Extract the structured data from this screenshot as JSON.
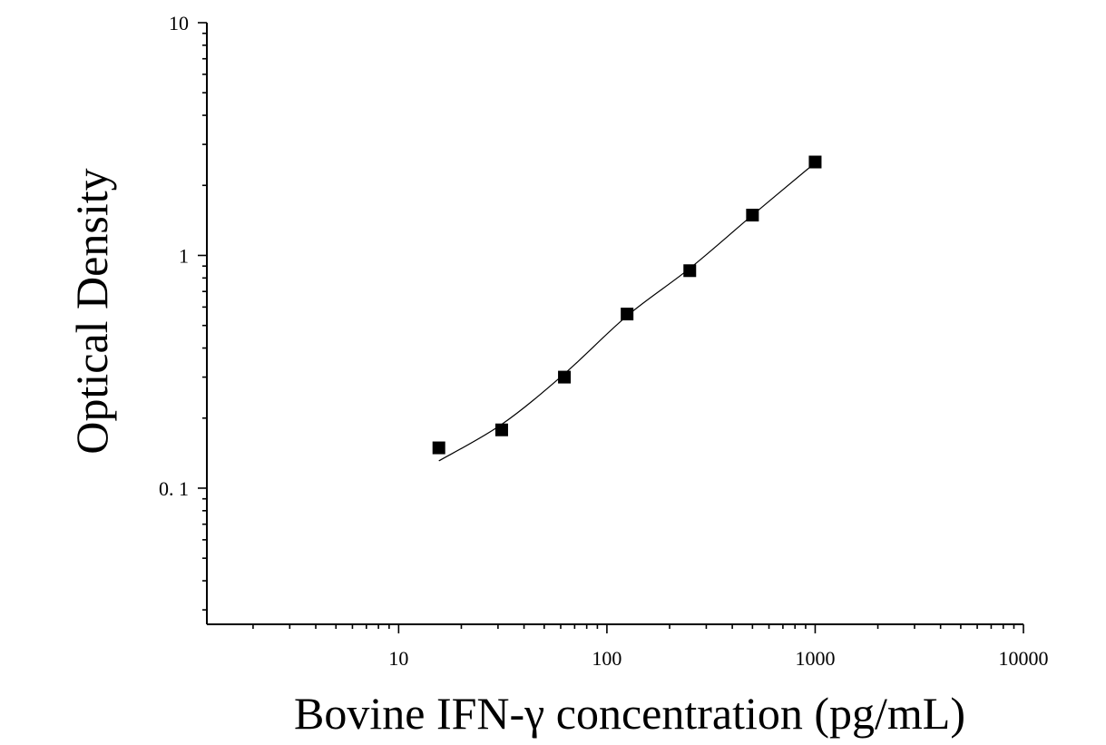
{
  "chart_data": {
    "type": "scatter",
    "title": "",
    "xlabel": "Bovine IFN-γ concentration (pg/mL)",
    "ylabel": "Optical Density",
    "x_scale": "log",
    "y_scale": "log",
    "xlim": [
      1.2,
      10000
    ],
    "ylim": [
      0.026,
      10
    ],
    "x_ticks": [
      10,
      100,
      1000,
      10000
    ],
    "x_tick_labels": [
      "10",
      "100",
      "1000",
      "10000"
    ],
    "y_ticks": [
      0.1,
      1,
      10
    ],
    "y_tick_labels": [
      "0. 1",
      "1",
      "10"
    ],
    "grid": false,
    "legend": "none",
    "marker": "square",
    "marker_color": "#000000",
    "line_color": "#000000",
    "series": [
      {
        "x": [
          15.6,
          31.25,
          62.5,
          125,
          250,
          500,
          1000
        ],
        "y": [
          0.149,
          0.178,
          0.3,
          0.56,
          0.86,
          1.49,
          2.52
        ]
      }
    ],
    "fit_curve": {
      "x": [
        15.6,
        31.25,
        62.5,
        125,
        250,
        500,
        1000
      ],
      "y": [
        0.131,
        0.188,
        0.31,
        0.55,
        0.88,
        1.49,
        2.5
      ]
    }
  }
}
